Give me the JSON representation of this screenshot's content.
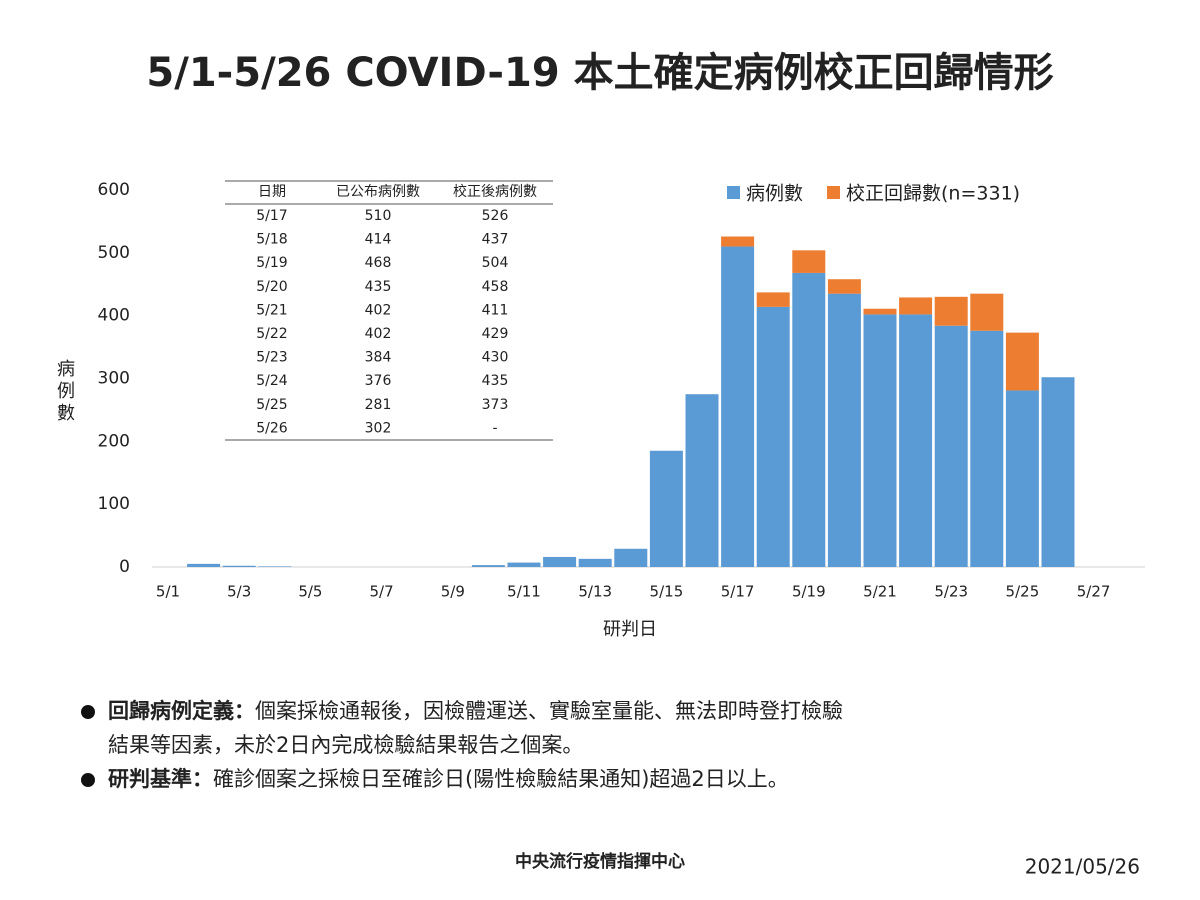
{
  "chart_data": {
    "type": "stacked_bar",
    "title": "5/1-5/26 COVID-19 本土確定病例校正回歸情形",
    "x_label": "研判日",
    "y_label": "病例數",
    "categories": [
      "5/1",
      null,
      "5/3",
      null,
      "5/5",
      null,
      "5/7",
      null,
      "5/9",
      null,
      "5/11",
      null,
      "5/13",
      null,
      "5/15",
      null,
      "5/17",
      null,
      "5/19",
      null,
      "5/21",
      null,
      "5/23",
      null,
      "5/25",
      null,
      "5/27"
    ],
    "series": [
      {
        "name": "病例數",
        "color": "#5b9bd5",
        "values": [
          0,
          5,
          2,
          1,
          0,
          0,
          0,
          0,
          0,
          3,
          7,
          16,
          13,
          29,
          185,
          275,
          510,
          414,
          468,
          435,
          402,
          402,
          384,
          376,
          281,
          302,
          null
        ]
      },
      {
        "name": "校正回歸數(n=331)",
        "color": "#ed7d31",
        "values": [
          null,
          null,
          null,
          null,
          null,
          null,
          null,
          null,
          null,
          null,
          null,
          null,
          null,
          null,
          null,
          null,
          16,
          23,
          36,
          23,
          9,
          27,
          46,
          59,
          92,
          null,
          null
        ]
      }
    ],
    "ylim": [
      0,
      600
    ],
    "yticks": [
      0,
      100,
      200,
      300,
      400,
      500,
      600
    ],
    "grid": false,
    "legend": "upper right"
  },
  "table": {
    "columns": [
      "日期",
      "已公布病例數",
      "校正後病例數"
    ],
    "rows": [
      [
        "5/17",
        "510",
        "526"
      ],
      [
        "5/18",
        "414",
        "437"
      ],
      [
        "5/19",
        "468",
        "504"
      ],
      [
        "5/20",
        "435",
        "458"
      ],
      [
        "5/21",
        "402",
        "411"
      ],
      [
        "5/22",
        "402",
        "429"
      ],
      [
        "5/23",
        "384",
        "430"
      ],
      [
        "5/24",
        "376",
        "435"
      ],
      [
        "5/25",
        "281",
        "373"
      ],
      [
        "5/26",
        "302",
        "-"
      ]
    ]
  },
  "notes": [
    {
      "label": "回歸病例定義：",
      "lines": [
        "個案採檢通報後，因檢體運送、實驗室量能、無法即時登打檢驗",
        "結果等因素，未於2日內完成檢驗結果報告之個案。"
      ]
    },
    {
      "label": "研判基準：",
      "lines": [
        "確診個案之採檢日至確診日(陽性檢驗結果通知)超過2日以上。"
      ]
    }
  ],
  "footer": {
    "source": "中央流行疫情指揮中心",
    "date": "2021/05/26"
  }
}
